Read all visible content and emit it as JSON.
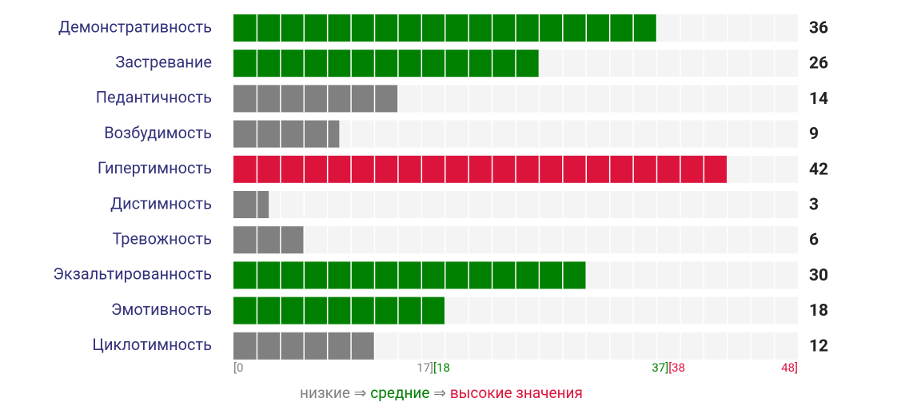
{
  "chart_data": {
    "type": "bar",
    "orientation": "horizontal",
    "categories": [
      "Демонстративность",
      "Застревание",
      "Педантичность",
      "Возбудимость",
      "Гипертимность",
      "Дистимность",
      "Тревожность",
      "Экзальтированность",
      "Эмотивность",
      "Циклотимность"
    ],
    "values": [
      36,
      26,
      14,
      9,
      42,
      3,
      6,
      30,
      18,
      12
    ],
    "colors": [
      "#008000",
      "#008000",
      "#808080",
      "#808080",
      "#dc143c",
      "#808080",
      "#808080",
      "#008000",
      "#008000",
      "#808080"
    ],
    "xlim": [
      0,
      48
    ],
    "xticks": [
      {
        "value": 0,
        "label": "[0"
      },
      {
        "value": 17,
        "label": "17]"
      },
      {
        "value": 18,
        "label": "[18"
      },
      {
        "value": 37,
        "label": "37]"
      },
      {
        "value": 38,
        "label": "[38"
      },
      {
        "value": 48,
        "label": "48]"
      }
    ],
    "xtick_colors": [
      "#808080",
      "#808080",
      "#008000",
      "#008000",
      "#dc143c",
      "#dc143c"
    ],
    "legend": {
      "items": [
        {
          "name": "низкие",
          "color": "#808080"
        },
        {
          "name": "средние",
          "color": "#008000"
        },
        {
          "name": "высокие значения",
          "color": "#dc143c"
        }
      ],
      "separator": "⇒"
    }
  }
}
